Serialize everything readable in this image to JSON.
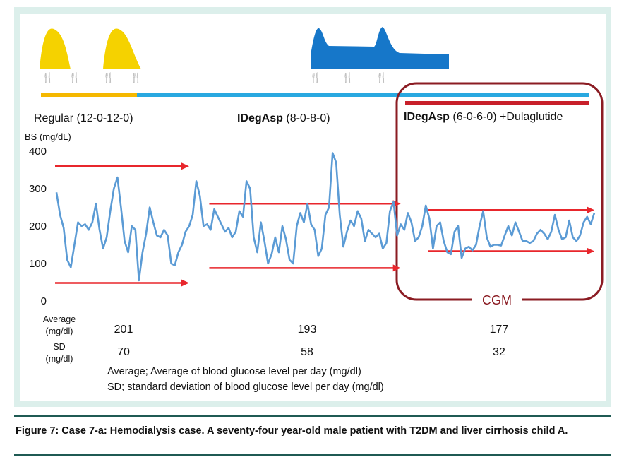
{
  "figure": {
    "caption": "Figure 7: Case 7-a: Hemodialysis case. A seventy-four year-old male patient with T2DM and liver cirrhosis child A."
  },
  "regimens": [
    {
      "name": "Regular",
      "dose": "(12-0-12-0)",
      "bar_color": "#f5b800"
    },
    {
      "name": "IDegAsp",
      "dose": "(8-0-8-0)",
      "bar_color": "#29a8e0"
    },
    {
      "name": "IDegAsp",
      "dose": "(6-0-6-0) +Dulaglutide",
      "bar_color": "#c8202a"
    }
  ],
  "cgm_label": "CGM",
  "stats": {
    "average_label_1": "Average",
    "average_label_2": "(mg/dl)",
    "sd_label_1": "SD",
    "sd_label_2": "(mg/dl)",
    "averages": [
      "201",
      "193",
      "177"
    ],
    "sds": [
      "70",
      "58",
      "32"
    ],
    "note_1": "Average;  Average of blood glucose level per day (mg/dl)",
    "note_2": "SD; standard deviation of blood glucose level per day (mg/dl)"
  },
  "colors": {
    "line": "#5b9bd5",
    "arrow": "#e8262c",
    "cgm_box": "#8b1c23",
    "yellow": "#f5d200",
    "blue_profile": "#1677c9"
  },
  "chart_data": {
    "type": "line",
    "title": "",
    "ylabel": "BS (mg/dL)",
    "xlabel": "",
    "ylim": [
      0,
      400
    ],
    "yticks": [
      "0",
      "100",
      "200",
      "300",
      "400"
    ],
    "x_index_range": [
      0,
      150
    ],
    "series": [
      {
        "name": "Blood glucose",
        "values": [
          290,
          230,
          195,
          110,
          90,
          150,
          210,
          200,
          205,
          190,
          210,
          260,
          190,
          140,
          170,
          240,
          300,
          330,
          250,
          160,
          130,
          200,
          190,
          55,
          130,
          180,
          250,
          210,
          175,
          170,
          190,
          175,
          100,
          95,
          130,
          150,
          185,
          200,
          230,
          320,
          280,
          200,
          205,
          190,
          245,
          225,
          205,
          185,
          195,
          170,
          185,
          240,
          225,
          320,
          300,
          170,
          130,
          210,
          160,
          100,
          125,
          170,
          130,
          200,
          165,
          110,
          100,
          200,
          235,
          210,
          260,
          205,
          190,
          120,
          140,
          230,
          250,
          395,
          370,
          230,
          145,
          185,
          215,
          200,
          240,
          220,
          160,
          190,
          180,
          170,
          180,
          140,
          155,
          240,
          265,
          175,
          205,
          190,
          235,
          210,
          160,
          170,
          200,
          255,
          220,
          140,
          200,
          210,
          160,
          130,
          125,
          185,
          200,
          115,
          140,
          145,
          135,
          150,
          200,
          240,
          170,
          145,
          150,
          150,
          148,
          175,
          200,
          175,
          210,
          185,
          160,
          160,
          155,
          160,
          180,
          190,
          180,
          165,
          185,
          230,
          190,
          165,
          170,
          215,
          170,
          160,
          175,
          210,
          225,
          205,
          235
        ]
      }
    ],
    "reference_lines": [
      {
        "name": "Regular upper",
        "y": 360,
        "x_range": [
          0,
          37
        ]
      },
      {
        "name": "Regular lower",
        "y": 48,
        "x_range": [
          0,
          37
        ]
      },
      {
        "name": "IDegAsp upper",
        "y": 260,
        "x_range": [
          43,
          96
        ]
      },
      {
        "name": "IDegAsp lower",
        "y": 88,
        "x_range": [
          43,
          96
        ]
      },
      {
        "name": "Dulaglutide upper",
        "y": 243,
        "x_range": [
          104,
          150
        ]
      },
      {
        "name": "Dulaglutide lower",
        "y": 133,
        "x_range": [
          104,
          150
        ]
      }
    ],
    "cgm_range": [
      97,
      151
    ]
  }
}
